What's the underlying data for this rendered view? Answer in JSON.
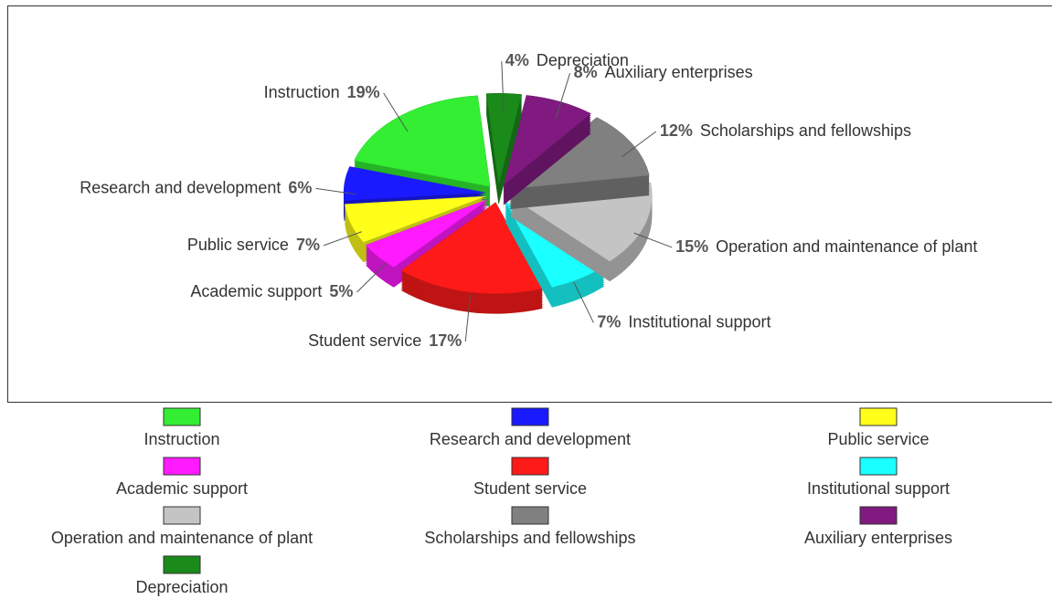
{
  "chart_data": {
    "type": "pie",
    "categories": [
      "Instruction",
      "Research and development",
      "Public service",
      "Academic support",
      "Student service",
      "Institutional support",
      "Operation and maintenance of plant",
      "Scholarships and fellowships",
      "Auxiliary enterprises",
      "Depreciation"
    ],
    "values": [
      19,
      6,
      7,
      5,
      17,
      7,
      15,
      12,
      8,
      4
    ],
    "value_labels": [
      "19%",
      "6%",
      "7%",
      "5%",
      "17%",
      "7%",
      "15%",
      "12%",
      "8%",
      "4%"
    ],
    "colors": [
      "#33ee33",
      "#1a1aff",
      "#ffff1a",
      "#ff1aff",
      "#ff1a1a",
      "#1affff",
      "#c4c4c4",
      "#808080",
      "#801a80",
      "#1a8a1a"
    ],
    "legend": "bottom"
  }
}
